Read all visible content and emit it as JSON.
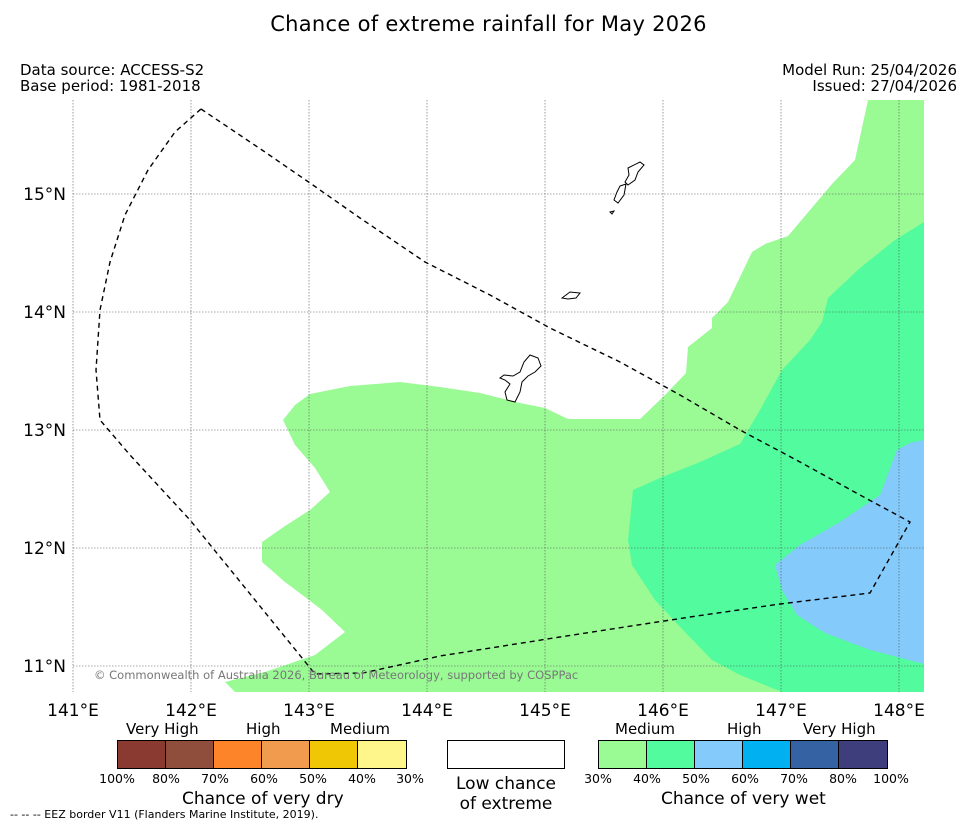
{
  "title": "Chance of extreme rainfall for May 2026",
  "header": {
    "data_source": "Data source: ACCESS-S2",
    "base_period": "Base period: 1981-2018",
    "model_run": "Model Run: 25/04/2026",
    "issued": "Issued: 27/04/2026"
  },
  "map": {
    "lon_labels": [
      "141°E",
      "142°E",
      "143°E",
      "144°E",
      "145°E",
      "146°E",
      "147°E",
      "148°E"
    ],
    "lat_labels": [
      "15°N",
      "14°N",
      "13°N",
      "12°N",
      "11°N"
    ],
    "copyright": "© Commonwealth of Australia 2026, Bureau of Meteorology, supported by COSPPac"
  },
  "legend": {
    "dry": {
      "caption": "Chance of very dry",
      "categories": [
        "Very High",
        "High",
        "Medium"
      ],
      "colors": [
        "#8b3a32",
        "#8f4d3b",
        "#fe8429",
        "#f09b4e",
        "#f0c705",
        "#fef58b"
      ],
      "ticks": [
        "100%",
        "80%",
        "70%",
        "60%",
        "50%",
        "40%",
        "30%"
      ]
    },
    "low": {
      "caption_line1": "Low chance",
      "caption_line2": "of extreme"
    },
    "wet": {
      "caption": "Chance of very wet",
      "categories": [
        "Medium",
        "High",
        "Very High"
      ],
      "colors": [
        "#9afb95",
        "#52fb9d",
        "#84cafb",
        "#00b0f0",
        "#3562a2",
        "#3e3e7c"
      ],
      "ticks": [
        "30%",
        "40%",
        "50%",
        "60%",
        "70%",
        "80%",
        "100%"
      ]
    }
  },
  "footnote": "--  --  -- EEZ border V11 (Flanders Marine Institute, 2019)."
}
